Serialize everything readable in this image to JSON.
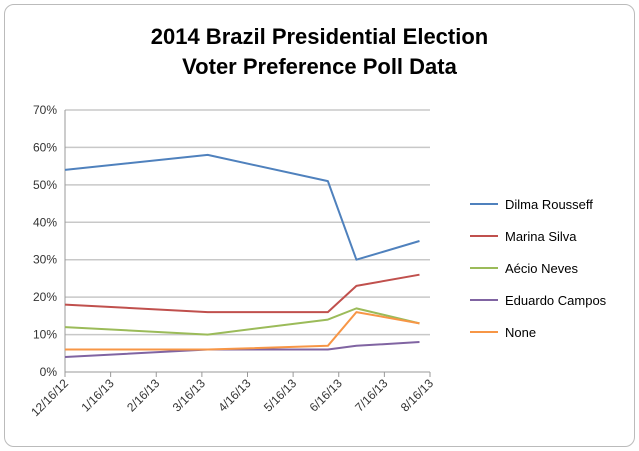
{
  "chart_data": {
    "type": "line",
    "title": "2014 Brazil Presidential Election",
    "subtitle": "Voter Preference Poll Data",
    "xlabel": "",
    "ylabel": "",
    "ylim": [
      0,
      70
    ],
    "yticks": [
      "0%",
      "10%",
      "20%",
      "30%",
      "40%",
      "50%",
      "60%",
      "70%"
    ],
    "xticks": [
      "12/16/12",
      "1/16/13",
      "2/16/13",
      "3/16/13",
      "4/16/13",
      "5/16/13",
      "6/16/13",
      "7/16/13",
      "8/16/13"
    ],
    "x_days_from_start": [
      0,
      95,
      175,
      194,
      236
    ],
    "x": [
      "12/16/12",
      "3/21/13",
      "6/9/13",
      "6/28/13",
      "8/9/13"
    ],
    "xrange_days": [
      0,
      243
    ],
    "grid": true,
    "legend_position": "right",
    "series": [
      {
        "name": "Dilma Rousseff",
        "color": "#4f81bd",
        "values": [
          54,
          58,
          51,
          30,
          35
        ]
      },
      {
        "name": "Marina Silva",
        "color": "#c0504d",
        "values": [
          18,
          16,
          16,
          23,
          26
        ]
      },
      {
        "name": "Aécio Neves",
        "color": "#9bbb59",
        "values": [
          12,
          10,
          14,
          17,
          13
        ]
      },
      {
        "name": "Eduardo Campos",
        "color": "#8064a2",
        "values": [
          4,
          6,
          6,
          7,
          8
        ]
      },
      {
        "name": "None",
        "color": "#f79646",
        "values": [
          6,
          6,
          7,
          16,
          13
        ]
      }
    ]
  }
}
